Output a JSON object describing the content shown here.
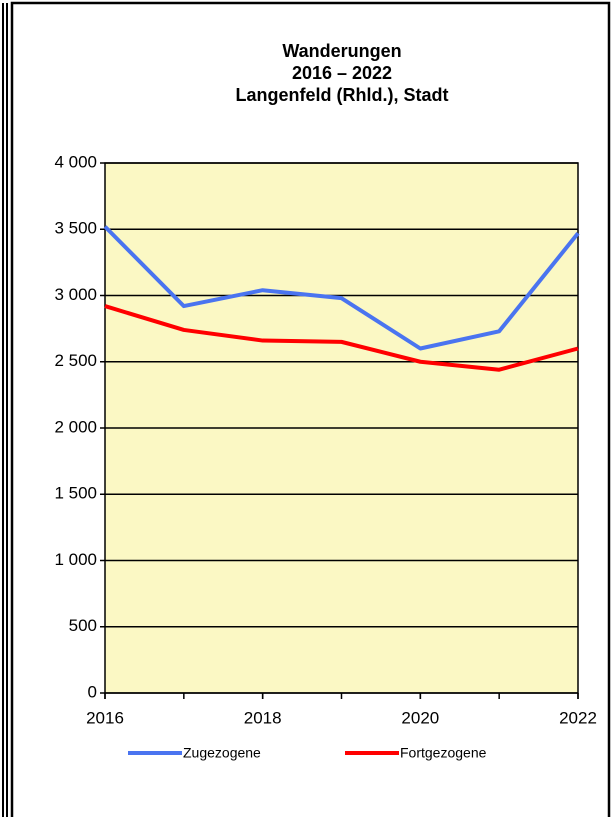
{
  "chart_data": {
    "type": "line",
    "title": [
      "Wanderungen",
      "2016 – 2022",
      "Langenfeld (Rhld.), Stadt"
    ],
    "x": [
      2016,
      2017,
      2018,
      2019,
      2020,
      2021,
      2022
    ],
    "series": [
      {
        "name": "Zugezogene",
        "color": "#4a74f0",
        "values": [
          3520,
          2920,
          3040,
          2980,
          2600,
          2730,
          3470
        ]
      },
      {
        "name": "Fortgezogene",
        "color": "#ff0000",
        "values": [
          2920,
          2740,
          2660,
          2650,
          2500,
          2440,
          2600
        ]
      }
    ],
    "xlim": [
      2016,
      2022
    ],
    "xticks": [
      2016,
      2018,
      2020,
      2022
    ],
    "ylim": [
      0,
      4000
    ],
    "yticks": [
      0,
      500,
      {
        "value": 1000,
        "label": "1 000"
      },
      {
        "value": 1500,
        "label": "1 500"
      },
      {
        "value": 2000,
        "label": "2 000"
      },
      {
        "value": 2500,
        "label": "2 500"
      },
      {
        "value": 3000,
        "label": "3 000"
      },
      {
        "value": 3500,
        "label": "3 500"
      },
      {
        "value": 4000,
        "label": "4 000"
      }
    ],
    "grid": true,
    "plot_background": "#fbf8c4",
    "legend": "bottom"
  }
}
